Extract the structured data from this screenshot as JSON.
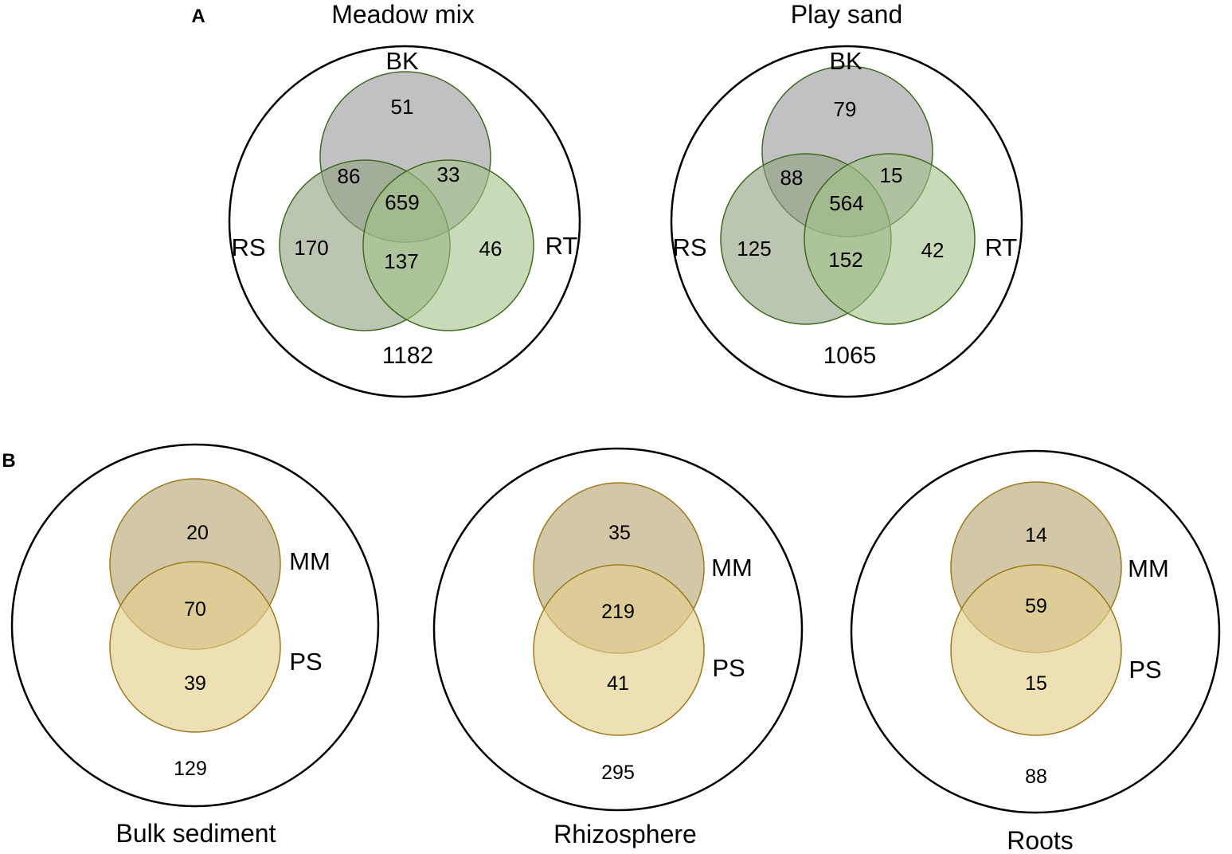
{
  "panel_a": {
    "letter": "A",
    "colors": {
      "bk": "#a6a5a9",
      "rs": "#8ea07f",
      "rt": "#a3c188",
      "outline": "#3f6b1e"
    },
    "venns": [
      {
        "title": "Meadow mix",
        "labels": {
          "bk": "BK",
          "rs": "RS",
          "rt": "RT"
        },
        "values": {
          "bk_only": "51",
          "bk_rs": "86",
          "bk_rt": "33",
          "all": "659",
          "rs_only": "170",
          "rs_rt": "137",
          "rt_only": "46",
          "outside": "1182"
        }
      },
      {
        "title": "Play sand",
        "labels": {
          "bk": "BK",
          "rs": "RS",
          "rt": "RT"
        },
        "values": {
          "bk_only": "79",
          "bk_rs": "88",
          "bk_rt": "15",
          "all": "564",
          "rs_only": "125",
          "rs_rt": "152",
          "rt_only": "42",
          "outside": "1065"
        }
      }
    ]
  },
  "panel_b": {
    "letter": "B",
    "colors": {
      "mm": "#c3b48a",
      "ps": "#e4cf8e",
      "outline": "#9c7a1e"
    },
    "venns": [
      {
        "title": "Bulk sediment",
        "labels": {
          "mm": "MM",
          "ps": "PS"
        },
        "values": {
          "mm_only": "20",
          "both": "70",
          "ps_only": "39",
          "outside": "129"
        }
      },
      {
        "title": "Rhizosphere",
        "labels": {
          "mm": "MM",
          "ps": "PS"
        },
        "values": {
          "mm_only": "35",
          "both": "219",
          "ps_only": "41",
          "outside": "295"
        }
      },
      {
        "title": "Roots",
        "labels": {
          "mm": "MM",
          "ps": "PS"
        },
        "values": {
          "mm_only": "14",
          "both": "59",
          "ps_only": "15",
          "outside": "88"
        }
      }
    ]
  }
}
